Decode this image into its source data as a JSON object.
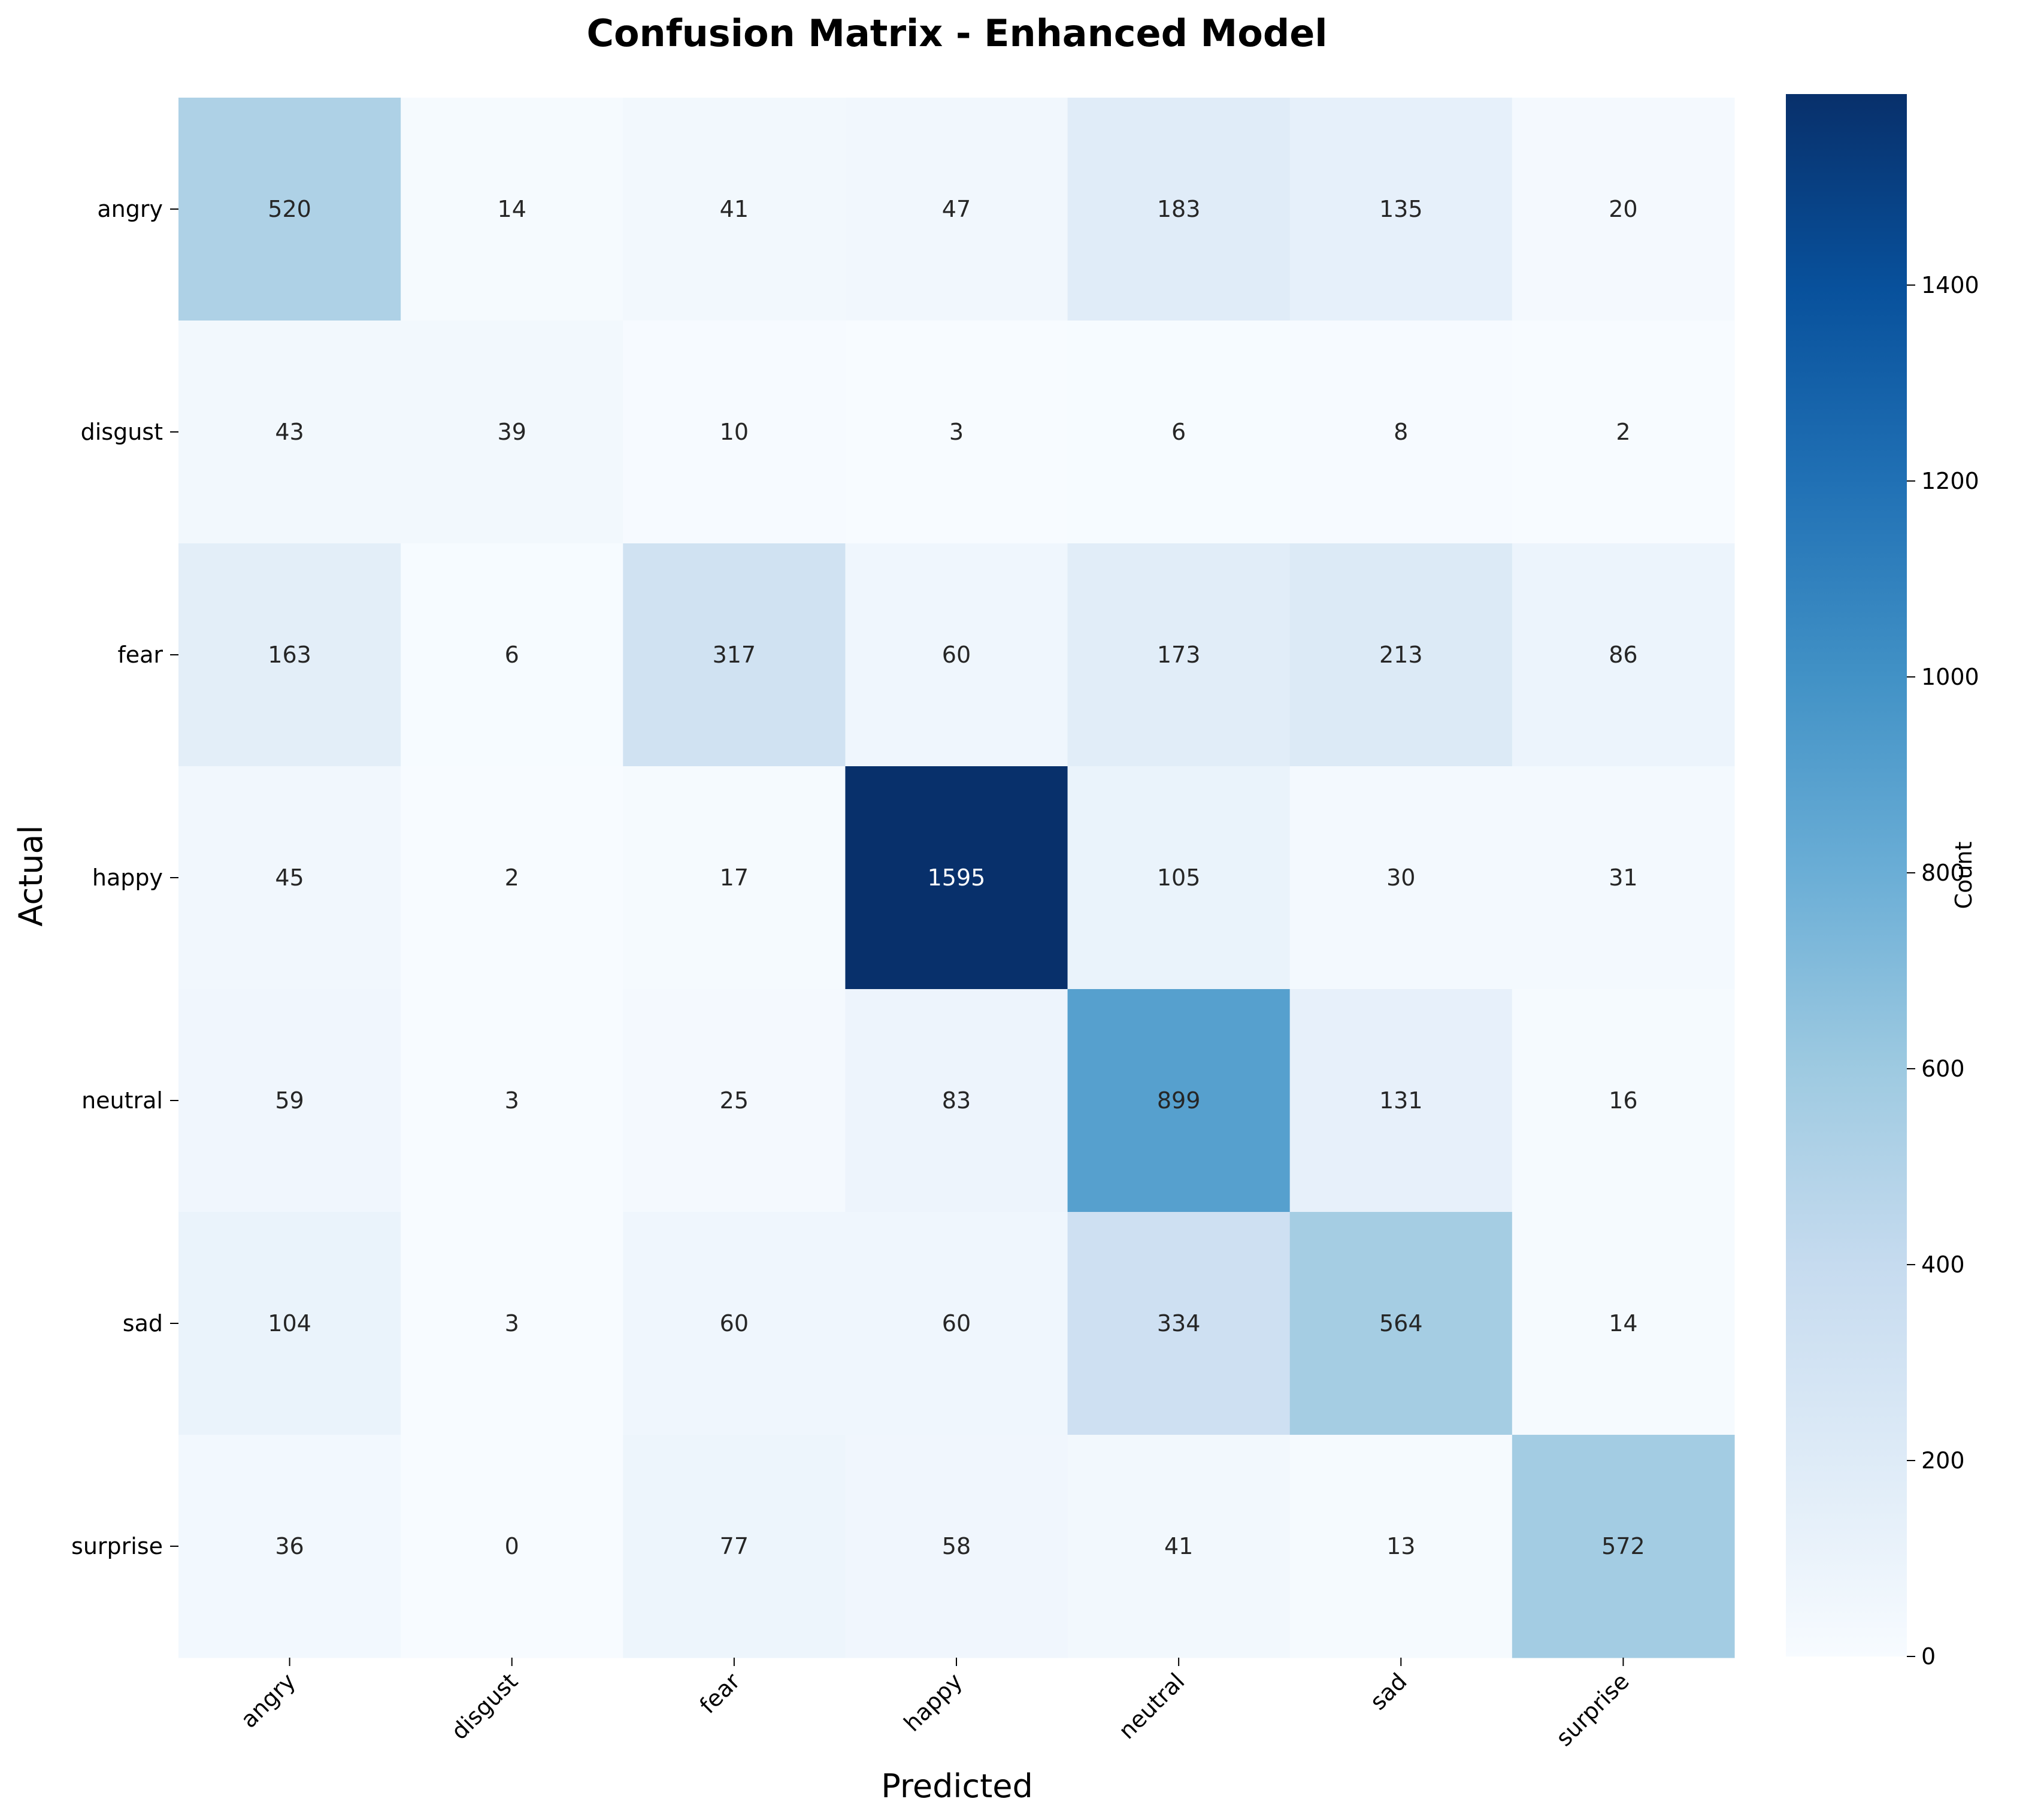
{
  "chart_data": {
    "type": "heatmap",
    "title": "Confusion Matrix - Enhanced Model",
    "xlabel": "Predicted",
    "ylabel": "Actual",
    "x_categories": [
      "angry",
      "disgust",
      "fear",
      "happy",
      "neutral",
      "sad",
      "surprise"
    ],
    "y_categories": [
      "angry",
      "disgust",
      "fear",
      "happy",
      "neutral",
      "sad",
      "surprise"
    ],
    "values": [
      [
        520,
        14,
        41,
        47,
        183,
        135,
        20
      ],
      [
        43,
        39,
        10,
        3,
        6,
        8,
        2
      ],
      [
        163,
        6,
        317,
        60,
        173,
        213,
        86
      ],
      [
        45,
        2,
        17,
        1595,
        105,
        30,
        31
      ],
      [
        59,
        3,
        25,
        83,
        899,
        131,
        16
      ],
      [
        104,
        3,
        60,
        60,
        334,
        564,
        14
      ],
      [
        36,
        0,
        77,
        58,
        41,
        13,
        572
      ]
    ],
    "colormap": "Blues",
    "colorbar": {
      "label": "Count",
      "range": [
        0,
        1595
      ],
      "ticks": [
        0,
        200,
        400,
        600,
        800,
        1000,
        1200,
        1400
      ]
    },
    "grid": false,
    "legend": "none"
  }
}
